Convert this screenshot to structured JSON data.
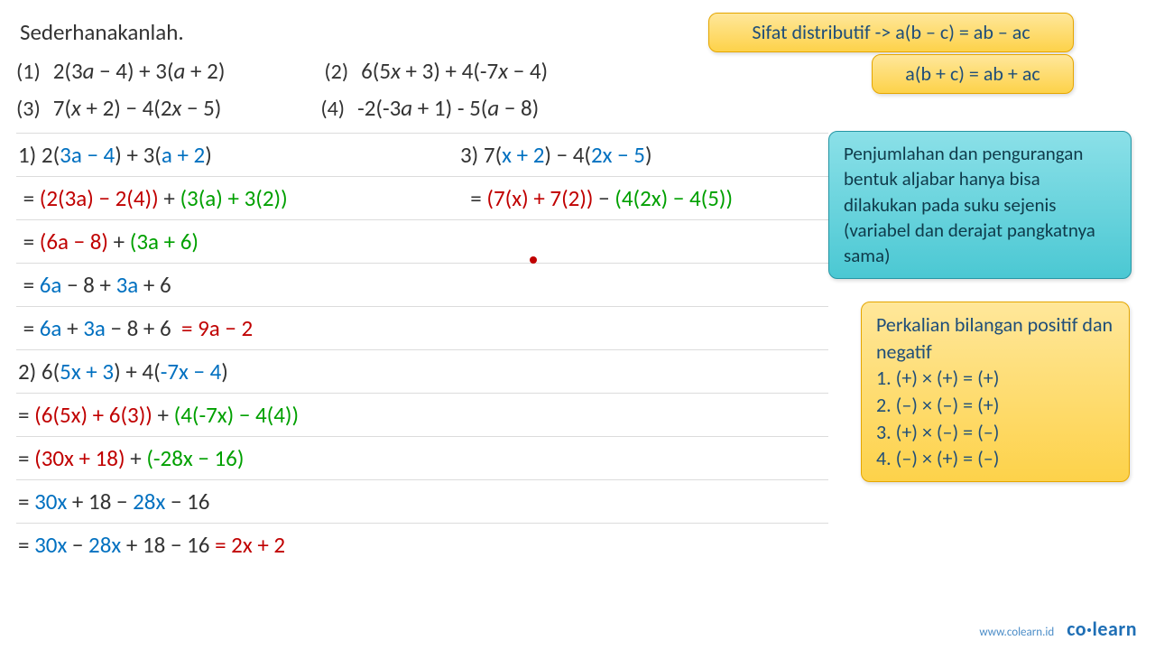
{
  "title": "Sederhanakanlah.",
  "problems": {
    "p1": {
      "num": "(1)",
      "expr_html": "2(3<i>a</i> − 4) + 3(<i>a</i> + 2)"
    },
    "p2": {
      "num": "(2)",
      "expr_html": "6(5<i>x</i> + 3) + 4(-7<i>x</i> − 4)"
    },
    "p3": {
      "num": "(3)",
      "expr_html": "7(<i>x</i> + 2) − 4(2<i>x</i> − 5)"
    },
    "p4": {
      "num": "(4)",
      "expr_html": "-2(-3<i>a</i> + 1) - 5(<i>a</i> − 8)"
    }
  },
  "work": {
    "l1a_html": "1) 2(<span class='c-blue'>3a − 4</span>) + 3(<span class='c-blue'>a + 2</span>)",
    "l1b_html": "3) 7(<span class='c-blue'>x + 2</span>) − 4(<span class='c-blue'>2x − 5</span>)",
    "l2a_html": "&nbsp;= <span class='c-red'>(2(3a) − 2(4))</span> + <span class='c-grn'>(3(a) + 3(2))</span>",
    "l2b_html": "&nbsp;&nbsp;= <span class='c-red'>(7(x) + 7(2))</span> − <span class='c-grn'>(4(2x) − 4(5))</span>",
    "l3_html": "&nbsp;= <span class='c-red'>(6a − 8)</span> + <span class='c-grn'>(3a + 6)</span>",
    "l4_html": "&nbsp;= <span class='c-blue'>6a</span> − 8 + <span class='c-blue'>3a</span> + 6",
    "l5_html": "&nbsp;= <span class='c-blue'>6a</span> + <span class='c-blue'>3a</span> − 8 + 6 &nbsp;<span class='c-red'>= 9a − 2</span>",
    "l6_html": "2) 6(<span class='c-blue'>5x + 3</span>) + 4(<span class='c-blue'>-7x − 4</span>)",
    "l7_html": "= <span class='c-red'>(6(5x) + 6(3))</span> + <span class='c-grn'>(4(-7x) − 4(4))</span>",
    "l8_html": "= <span class='c-red'>(30x + 18)</span> + <span class='c-grn'>(-28x − 16)</span>",
    "l9_html": "= <span class='c-blue'>30x</span> + 18 − <span class='c-blue'>28x</span> − 16",
    "l10_html": "= <span class='c-blue'>30x</span> − <span class='c-blue'>28x</span> + 18 − 16 <span class='c-red'>= 2x + 2</span>"
  },
  "boxes": {
    "b1": "Sifat distributif -> a(b – c) = ab – ac",
    "b2": "a(b + c) = ab + ac",
    "b3": "Penjumlahan dan pengurangan bentuk aljabar hanya bisa dilakukan pada suku sejenis (variabel dan derajat pangkatnya sama)",
    "b4_title": "Perkalian bilangan positif dan negatif",
    "b4_r1": "1. (+) × (+) = (+)",
    "b4_r2": "2. (–) × (–) = (+)",
    "b4_r3": "3. (+) × (–) = (–)",
    "b4_r4": "4. (–) × (+) = (–)"
  },
  "footer": {
    "url": "www.colearn.id",
    "logo_html": "co<span class='dotlogo'>·</span>learn"
  },
  "colors": {
    "blue": "#0070c0",
    "red": "#c00000",
    "green": "#00a000",
    "text": "#333333",
    "rule": "#dcdcdc",
    "box_yellow_top": "#ffe79a",
    "box_yellow_bottom": "#fdd24a",
    "box_yellow_border": "#e5a600",
    "box_yellow_text": "#1f4e79",
    "box_teal_top": "#8be0e8",
    "box_teal_bottom": "#4bc8d3",
    "box_teal_border": "#2596a5",
    "box_teal_text": "#0f3b4b"
  }
}
